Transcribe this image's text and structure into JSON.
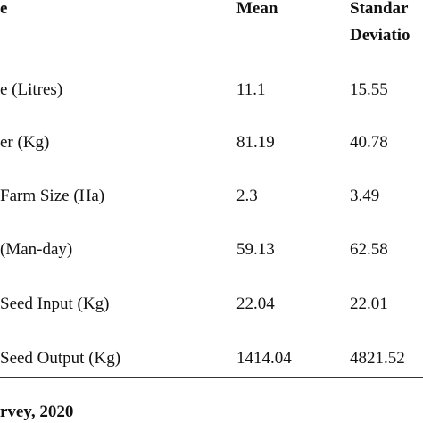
{
  "table": {
    "header": [
      [
        "e"
      ],
      [
        "Mean"
      ],
      [
        "Standar",
        "Deviatio"
      ]
    ],
    "rows": [
      [
        "e (Litres)",
        "11.1",
        "15.55"
      ],
      [
        "er (Kg)",
        "81.19",
        "40.78"
      ],
      [
        "Farm Size (Ha)",
        "2.3",
        "3.49"
      ],
      [
        "(Man-day)",
        "59.13",
        "62.58"
      ],
      [
        "Seed Input (Kg)",
        "22.04",
        "22.01"
      ],
      [
        "Seed Output (Kg)",
        "1414.04",
        "4821.52"
      ]
    ],
    "footer": "rvey, 2020"
  }
}
